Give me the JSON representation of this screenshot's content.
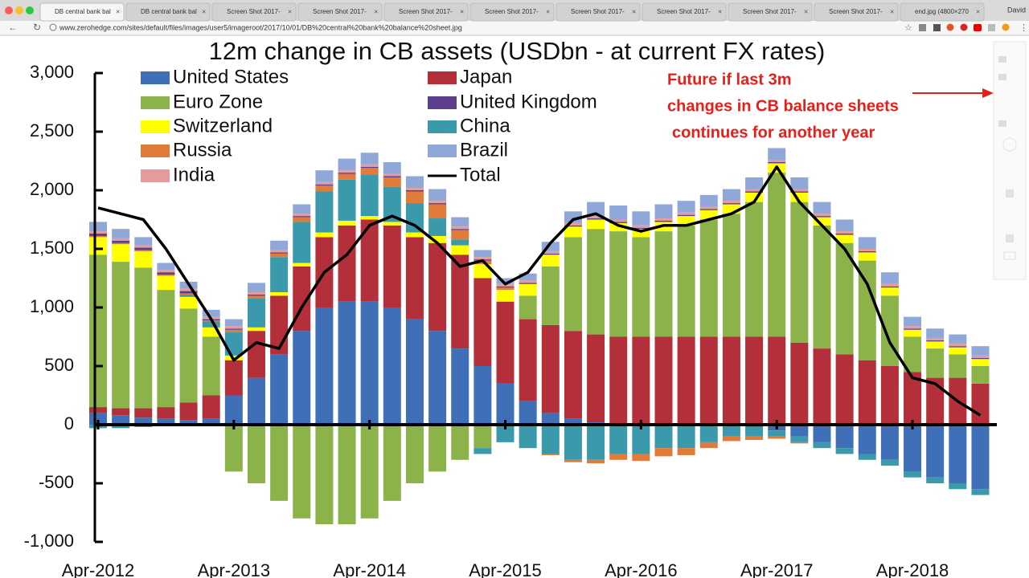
{
  "browser": {
    "tabs": [
      "DB central bank bal",
      "DB central bank bal",
      "Screen Shot 2017-",
      "Screen Shot 2017-",
      "Screen Shot 2017-",
      "Screen Shot 2017-",
      "Screen Shot 2017-",
      "Screen Shot 2017-",
      "Screen Shot 2017-",
      "Screen Shot 2017-",
      "end.jpg (4800×270"
    ],
    "user": "David",
    "url": "www.zerohedge.com/sites/default/files/images/user5/imageroot/2017/10/01/DB%20central%20bank%20balance%20sheet.jpg"
  },
  "chart_data": {
    "type": "bar",
    "stacked": true,
    "title": "12m change in CB assets (USDbn - at current FX rates)",
    "annotation": [
      "Future if last 3m",
      "changes in CB balance sheets",
      "continues for another year"
    ],
    "annotation_color": "#e3201b",
    "categories": [
      "Apr-2012",
      null,
      null,
      null,
      null,
      null,
      "Apr-2013",
      null,
      null,
      null,
      null,
      null,
      "Apr-2014",
      null,
      null,
      null,
      null,
      null,
      "Apr-2015",
      null,
      null,
      null,
      null,
      null,
      "Apr-2016",
      null,
      null,
      null,
      null,
      null,
      "Apr-2017",
      null,
      null,
      null,
      null,
      null,
      "Apr-2018",
      null,
      null,
      null
    ],
    "ylim": [
      -1000,
      3000
    ],
    "yticks": [
      {
        "value": -1000,
        "label": "-1,000"
      },
      -500,
      0,
      500,
      {
        "value": 1000,
        "label": "1,000"
      },
      {
        "value": 1500,
        "label": "1,500"
      },
      {
        "value": 2000,
        "label": "2,000"
      },
      {
        "value": 2500,
        "label": "2,500"
      },
      {
        "value": 3000,
        "label": "3,000"
      }
    ],
    "series": [
      {
        "name": "United States",
        "color": "#3f6fb6",
        "values": [
          100,
          80,
          60,
          50,
          40,
          50,
          250,
          400,
          600,
          800,
          1000,
          1050,
          1050,
          1000,
          900,
          800,
          650,
          500,
          350,
          200,
          100,
          50,
          20,
          0,
          0,
          0,
          0,
          0,
          0,
          -20,
          -50,
          -100,
          -150,
          -200,
          -250,
          -300,
          -400,
          -450,
          -500,
          -550
        ]
      },
      {
        "name": "Japan",
        "color": "#b3303a",
        "values": [
          50,
          60,
          80,
          100,
          150,
          200,
          300,
          400,
          500,
          550,
          600,
          650,
          700,
          700,
          700,
          750,
          800,
          750,
          700,
          700,
          750,
          750,
          750,
          750,
          750,
          750,
          750,
          750,
          750,
          750,
          750,
          700,
          650,
          600,
          550,
          500,
          450,
          400,
          400,
          350
        ]
      },
      {
        "name": "Euro Zone",
        "color": "#8cb24a",
        "values": [
          1300,
          1250,
          1200,
          1000,
          800,
          500,
          -400,
          -500,
          -650,
          -800,
          -850,
          -850,
          -800,
          -650,
          -500,
          -400,
          -300,
          -200,
          0,
          200,
          500,
          800,
          900,
          900,
          850,
          900,
          950,
          1000,
          1050,
          1150,
          1400,
          1200,
          1050,
          950,
          850,
          600,
          300,
          250,
          200,
          150
        ]
      },
      {
        "name": "Switzerland",
        "color": "#ffff00",
        "values": [
          150,
          150,
          140,
          120,
          100,
          80,
          40,
          30,
          30,
          30,
          40,
          40,
          30,
          30,
          40,
          60,
          80,
          120,
          100,
          100,
          100,
          90,
          80,
          70,
          70,
          80,
          80,
          80,
          80,
          80,
          80,
          80,
          70,
          70,
          70,
          70,
          60,
          60,
          60,
          60
        ]
      },
      {
        "name": "China",
        "color": "#3a9aab",
        "values": [
          -30,
          -30,
          -20,
          0,
          20,
          50,
          200,
          250,
          300,
          350,
          350,
          350,
          350,
          300,
          250,
          150,
          50,
          -50,
          -150,
          -200,
          -250,
          -300,
          -300,
          -250,
          -250,
          -200,
          -200,
          -150,
          -100,
          -80,
          -50,
          -50,
          -50,
          -50,
          -50,
          -50,
          -50,
          -50,
          -50,
          -50
        ]
      },
      {
        "name": "Russia",
        "color": "#e07b39",
        "values": [
          10,
          10,
          10,
          10,
          10,
          10,
          20,
          20,
          30,
          40,
          50,
          50,
          60,
          80,
          100,
          120,
          80,
          30,
          20,
          0,
          -10,
          -20,
          -30,
          -50,
          -60,
          -70,
          -60,
          -50,
          -40,
          -30,
          -20,
          -10,
          0,
          0,
          0,
          0,
          0,
          0,
          0,
          0
        ]
      },
      {
        "name": "United Kingdom",
        "color": "#5b3f8c",
        "values": [
          20,
          20,
          20,
          20,
          20,
          10,
          10,
          10,
          10,
          10,
          10,
          10,
          10,
          10,
          10,
          10,
          10,
          10,
          10,
          10,
          10,
          10,
          10,
          10,
          10,
          10,
          10,
          10,
          10,
          10,
          10,
          10,
          10,
          10,
          10,
          10,
          10,
          10,
          10,
          10
        ]
      },
      {
        "name": "India",
        "color": "#e59a9e",
        "values": [
          20,
          20,
          20,
          20,
          20,
          20,
          20,
          20,
          20,
          20,
          20,
          20,
          20,
          20,
          20,
          20,
          20,
          20,
          20,
          20,
          20,
          20,
          20,
          20,
          20,
          20,
          20,
          20,
          20,
          20,
          20,
          20,
          20,
          20,
          20,
          20,
          20,
          20,
          20,
          20
        ]
      },
      {
        "name": "Brazil",
        "color": "#90a8d8",
        "values": [
          80,
          80,
          70,
          60,
          60,
          60,
          60,
          80,
          80,
          80,
          100,
          100,
          100,
          100,
          100,
          100,
          80,
          60,
          50,
          60,
          80,
          100,
          120,
          120,
          120,
          120,
          100,
          100,
          100,
          100,
          100,
          100,
          100,
          100,
          100,
          100,
          80,
          80,
          80,
          80
        ]
      },
      {
        "name": "Total",
        "color": "#000000",
        "type": "line",
        "values": [
          1850,
          1800,
          1750,
          1500,
          1200,
          900,
          550,
          700,
          650,
          1000,
          1300,
          1450,
          1700,
          1780,
          1700,
          1550,
          1350,
          1400,
          1200,
          1300,
          1550,
          1750,
          1800,
          1700,
          1650,
          1700,
          1700,
          1750,
          1800,
          1900,
          2200,
          1900,
          1700,
          1500,
          1200,
          700,
          400,
          350,
          200,
          80
        ]
      }
    ]
  }
}
